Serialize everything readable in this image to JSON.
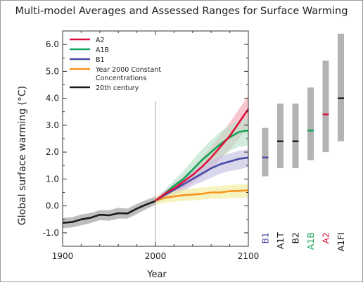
{
  "chart_data": {
    "title": "Multi-model Averages and Assessed Ranges for Surface Warming",
    "type": "line",
    "xlabel": "Year",
    "ylabel": "Global surface warming (°C)",
    "xlim": [
      1900,
      2100
    ],
    "ylim": [
      -1.5,
      6.5
    ],
    "x_ticks": [
      "1900",
      "2000",
      "2100"
    ],
    "y_ticks": [
      "-1.0",
      "0.0",
      "1.0",
      "2.0",
      "3.0",
      "4.0",
      "5.0",
      "6.0"
    ],
    "y_tick_values": [
      -1,
      0,
      1,
      2,
      3,
      4,
      5,
      6
    ],
    "grid": false,
    "legend_position": "top-left",
    "legend": [
      {
        "label": "A2",
        "color": "#e0103a"
      },
      {
        "label": "A1B",
        "color": "#14a35a"
      },
      {
        "label": "B1",
        "color": "#4a49a6"
      },
      {
        "label": "Year 2000 Constant Concentrations",
        "label_lines": [
          "Year 2000 Constant",
          "Concentrations"
        ],
        "color": "#f7941d"
      },
      {
        "label": "20th century",
        "color": "#1a1a1a"
      }
    ],
    "series": [
      {
        "name": "20th century",
        "color": "#1a1a1a",
        "band_color": "#9b9b9b",
        "x": [
          1900,
          1910,
          1920,
          1930,
          1940,
          1950,
          1960,
          1970,
          1980,
          1990,
          2000
        ],
        "y": [
          -0.63,
          -0.6,
          -0.5,
          -0.44,
          -0.33,
          -0.35,
          -0.27,
          -0.28,
          -0.1,
          0.05,
          0.18
        ],
        "low": [
          -0.83,
          -0.8,
          -0.72,
          -0.64,
          -0.53,
          -0.55,
          -0.47,
          -0.47,
          -0.3,
          -0.12,
          0.05
        ],
        "high": [
          -0.45,
          -0.42,
          -0.32,
          -0.26,
          -0.16,
          -0.16,
          -0.07,
          -0.1,
          0.08,
          0.22,
          0.35
        ]
      },
      {
        "name": "A2",
        "color": "#e0103a",
        "band_color": "#f4a7b3",
        "x": [
          2000,
          2010,
          2020,
          2030,
          2040,
          2050,
          2060,
          2070,
          2080,
          2090,
          2100
        ],
        "y": [
          0.2,
          0.45,
          0.65,
          0.9,
          1.15,
          1.45,
          1.8,
          2.2,
          2.6,
          3.1,
          3.6
        ],
        "low": [
          0.1,
          0.3,
          0.48,
          0.65,
          0.85,
          1.1,
          1.4,
          1.75,
          2.1,
          2.5,
          3.0
        ],
        "high": [
          0.3,
          0.55,
          0.8,
          1.1,
          1.4,
          1.8,
          2.2,
          2.65,
          3.1,
          3.6,
          4.1
        ]
      },
      {
        "name": "A1B",
        "color": "#14a35a",
        "band_color": "#b9e2c9",
        "x": [
          2000,
          2010,
          2020,
          2030,
          2040,
          2050,
          2060,
          2070,
          2080,
          2090,
          2100
        ],
        "y": [
          0.2,
          0.45,
          0.75,
          1.0,
          1.35,
          1.7,
          2.0,
          2.3,
          2.55,
          2.75,
          2.8
        ],
        "low": [
          0.1,
          0.3,
          0.55,
          0.75,
          1.0,
          1.25,
          1.55,
          1.8,
          2.05,
          2.2,
          2.25
        ],
        "high": [
          0.3,
          0.6,
          0.95,
          1.3,
          1.7,
          2.1,
          2.45,
          2.75,
          3.0,
          3.2,
          3.25
        ]
      },
      {
        "name": "B1",
        "color": "#4a49a6",
        "band_color": "#c4c1e2",
        "x": [
          2000,
          2010,
          2020,
          2030,
          2040,
          2050,
          2060,
          2070,
          2080,
          2090,
          2100
        ],
        "y": [
          0.2,
          0.4,
          0.6,
          0.8,
          1.0,
          1.2,
          1.4,
          1.55,
          1.65,
          1.75,
          1.8
        ],
        "low": [
          0.1,
          0.25,
          0.4,
          0.55,
          0.75,
          0.9,
          1.05,
          1.2,
          1.3,
          1.35,
          1.45
        ],
        "high": [
          0.3,
          0.55,
          0.8,
          1.05,
          1.3,
          1.5,
          1.7,
          1.85,
          1.95,
          2.05,
          2.1
        ]
      },
      {
        "name": "Year 2000 Constant Concentrations",
        "color": "#f7941d",
        "band_color": "#f2ec9c",
        "x": [
          2000,
          2010,
          2020,
          2030,
          2040,
          2050,
          2060,
          2070,
          2080,
          2090,
          2100
        ],
        "y": [
          0.2,
          0.3,
          0.35,
          0.4,
          0.42,
          0.45,
          0.5,
          0.5,
          0.55,
          0.56,
          0.58
        ],
        "low": [
          0.05,
          0.12,
          0.15,
          0.2,
          0.2,
          0.23,
          0.27,
          0.27,
          0.3,
          0.3,
          0.32
        ],
        "high": [
          0.35,
          0.48,
          0.55,
          0.62,
          0.65,
          0.68,
          0.72,
          0.74,
          0.78,
          0.8,
          0.82
        ]
      }
    ],
    "ranges": [
      {
        "name": "B1",
        "low": 1.1,
        "high": 2.9,
        "best": 1.8,
        "label_color": "#4a49a6",
        "best_color": "#4a49a6"
      },
      {
        "name": "A1T",
        "low": 1.4,
        "high": 3.8,
        "best": 2.4,
        "label_color": "#1a1a1a",
        "best_color": "#1a1a1a"
      },
      {
        "name": "B2",
        "low": 1.4,
        "high": 3.8,
        "best": 2.4,
        "label_color": "#1a1a1a",
        "best_color": "#1a1a1a"
      },
      {
        "name": "A1B",
        "low": 1.7,
        "high": 4.4,
        "best": 2.8,
        "label_color": "#14a35a",
        "best_color": "#14a35a"
      },
      {
        "name": "A2",
        "low": 2.0,
        "high": 5.4,
        "best": 3.4,
        "label_color": "#e0103a",
        "best_color": "#e0103a"
      },
      {
        "name": "A1FI",
        "low": 2.4,
        "high": 6.4,
        "best": 4.0,
        "label_color": "#1a1a1a",
        "best_color": "#1a1a1a"
      }
    ],
    "vline_year": 2000
  }
}
